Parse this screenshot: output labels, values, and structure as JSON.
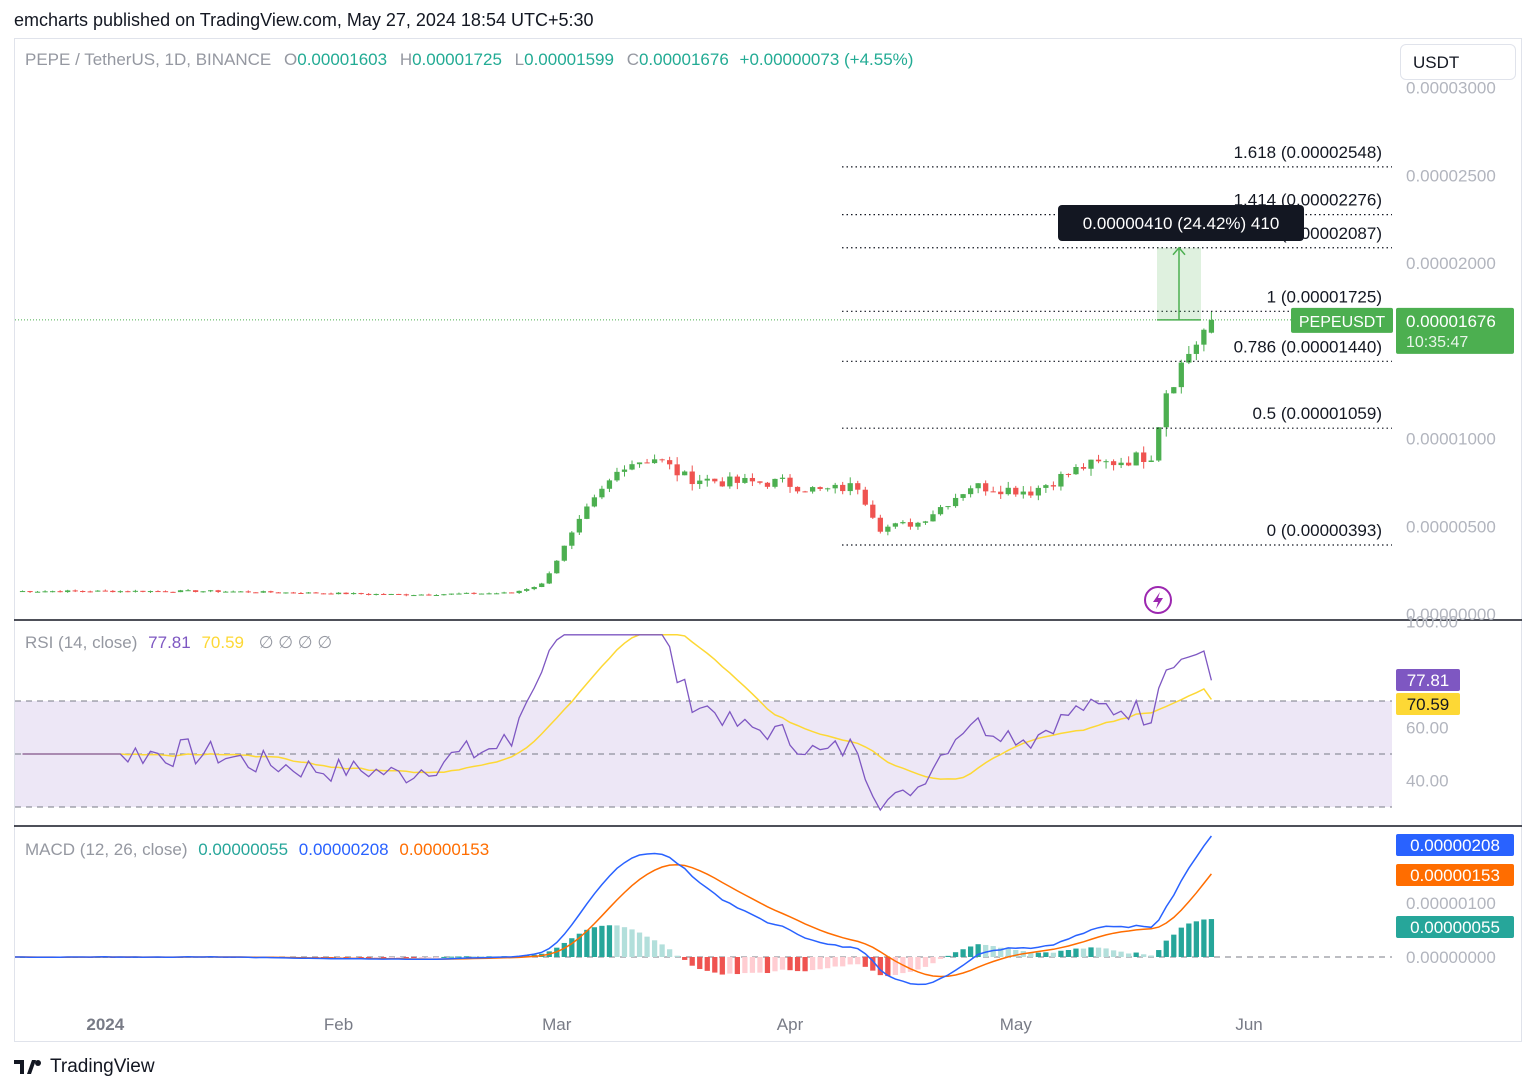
{
  "header": {
    "publisher": "emcharts published on TradingView.com, May 27, 2024 18:54 UTC+5:30"
  },
  "legend": {
    "symbol": "PEPE / TetherUS, 1D, BINANCE",
    "o_label": "O",
    "o": "0.00001603",
    "h_label": "H",
    "h": "0.00001725",
    "l_label": "L",
    "l": "0.00001599",
    "c_label": "C",
    "c": "0.00001676",
    "change": "+0.00000073 (+4.55%)"
  },
  "currency": "USDT",
  "price_axis": [
    "0.00003000",
    "0.00002500",
    "0.00002000",
    "0.00001000",
    "0.00000500",
    "0.00000000"
  ],
  "last_price_tag": {
    "symbol": "PEPEUSDT",
    "price": "0.00001676",
    "countdown": "10:35:47"
  },
  "measure_tooltip": "0.00000410 (24.42%) 410",
  "fib_levels": [
    {
      "label": "1.618 (0.00002548)",
      "value": 2.548e-05
    },
    {
      "label": "1.414 (0.00002276)",
      "value": 2.276e-05
    },
    {
      "label": "1.272 (0.00002087)",
      "value": 2.087e-05
    },
    {
      "label": "1 (0.00001725)",
      "value": 1.725e-05
    },
    {
      "label": "0.786 (0.00001440)",
      "value": 1.44e-05
    },
    {
      "label": "0.5 (0.00001059)",
      "value": 1.059e-05
    },
    {
      "label": "0 (0.00000393)",
      "value": 3.93e-06
    }
  ],
  "rsi": {
    "label": "RSI (14, close)",
    "value": "77.81",
    "ma": "70.59",
    "nulls": "∅ ∅ ∅ ∅",
    "axis": [
      "100.00",
      "60.00",
      "40.00"
    ],
    "colors": {
      "rsi": "#7e57c2",
      "ma": "#fdd835",
      "band": "#ede7f6"
    }
  },
  "macd": {
    "label": "MACD (12, 26, close)",
    "hist": "0.00000055",
    "macd": "0.00000208",
    "signal": "0.00000153",
    "axis": [
      "0.00000100",
      "0.00000000"
    ],
    "colors": {
      "macd": "#2962ff",
      "signal": "#ff6d00",
      "hist_up": "#26a69a",
      "hist_down": "#ef5350"
    }
  },
  "time_axis": [
    "2024",
    "Feb",
    "Mar",
    "Apr",
    "May",
    "Jun"
  ],
  "branding": "TradingView",
  "colors": {
    "up": "#26a69a",
    "up_bright": "#4caf50",
    "down": "#ef5350",
    "accent": "#4caf50"
  },
  "chart_data": {
    "type": "candlestick",
    "title": "PEPE / TetherUS, 1D, BINANCE",
    "xlabel": "",
    "ylabel": "",
    "ylim": [
      0,
      3.1e-05
    ],
    "x_range": [
      "2023-12-20",
      "2024-05-27"
    ],
    "grid": false,
    "close_series": {
      "name": "PEPEUSDT",
      "x": [
        "2023-12-20",
        "2024-01-15",
        "2024-02-10",
        "2024-02-24",
        "2024-02-28",
        "2024-03-02",
        "2024-03-05",
        "2024-03-10",
        "2024-03-14",
        "2024-03-18",
        "2024-03-24",
        "2024-03-31",
        "2024-04-05",
        "2024-04-10",
        "2024-04-13",
        "2024-04-18",
        "2024-04-25",
        "2024-05-03",
        "2024-05-10",
        "2024-05-16",
        "2024-05-19",
        "2024-05-21",
        "2024-05-24",
        "2024-05-27"
      ],
      "values": [
        1.3e-06,
        1.3e-06,
        1.1e-06,
        1.2e-06,
        1.7e-06,
        3.8e-06,
        5.9e-06,
        8.6e-06,
        8.9e-06,
        7.8e-06,
        7.5e-06,
        7.5e-06,
        7e-06,
        7.3e-06,
        4.9e-06,
        5.2e-06,
        7.3e-06,
        7e-06,
        8.4e-06,
        8.8e-06,
        9.1e-06,
        1.28e-05,
        1.49e-05,
        1.676e-05
      ]
    },
    "last": {
      "open": 1.603e-05,
      "high": 1.725e-05,
      "low": 1.599e-05,
      "close": 1.676e-05,
      "change": 7.3e-07,
      "change_pct": 4.55
    }
  }
}
